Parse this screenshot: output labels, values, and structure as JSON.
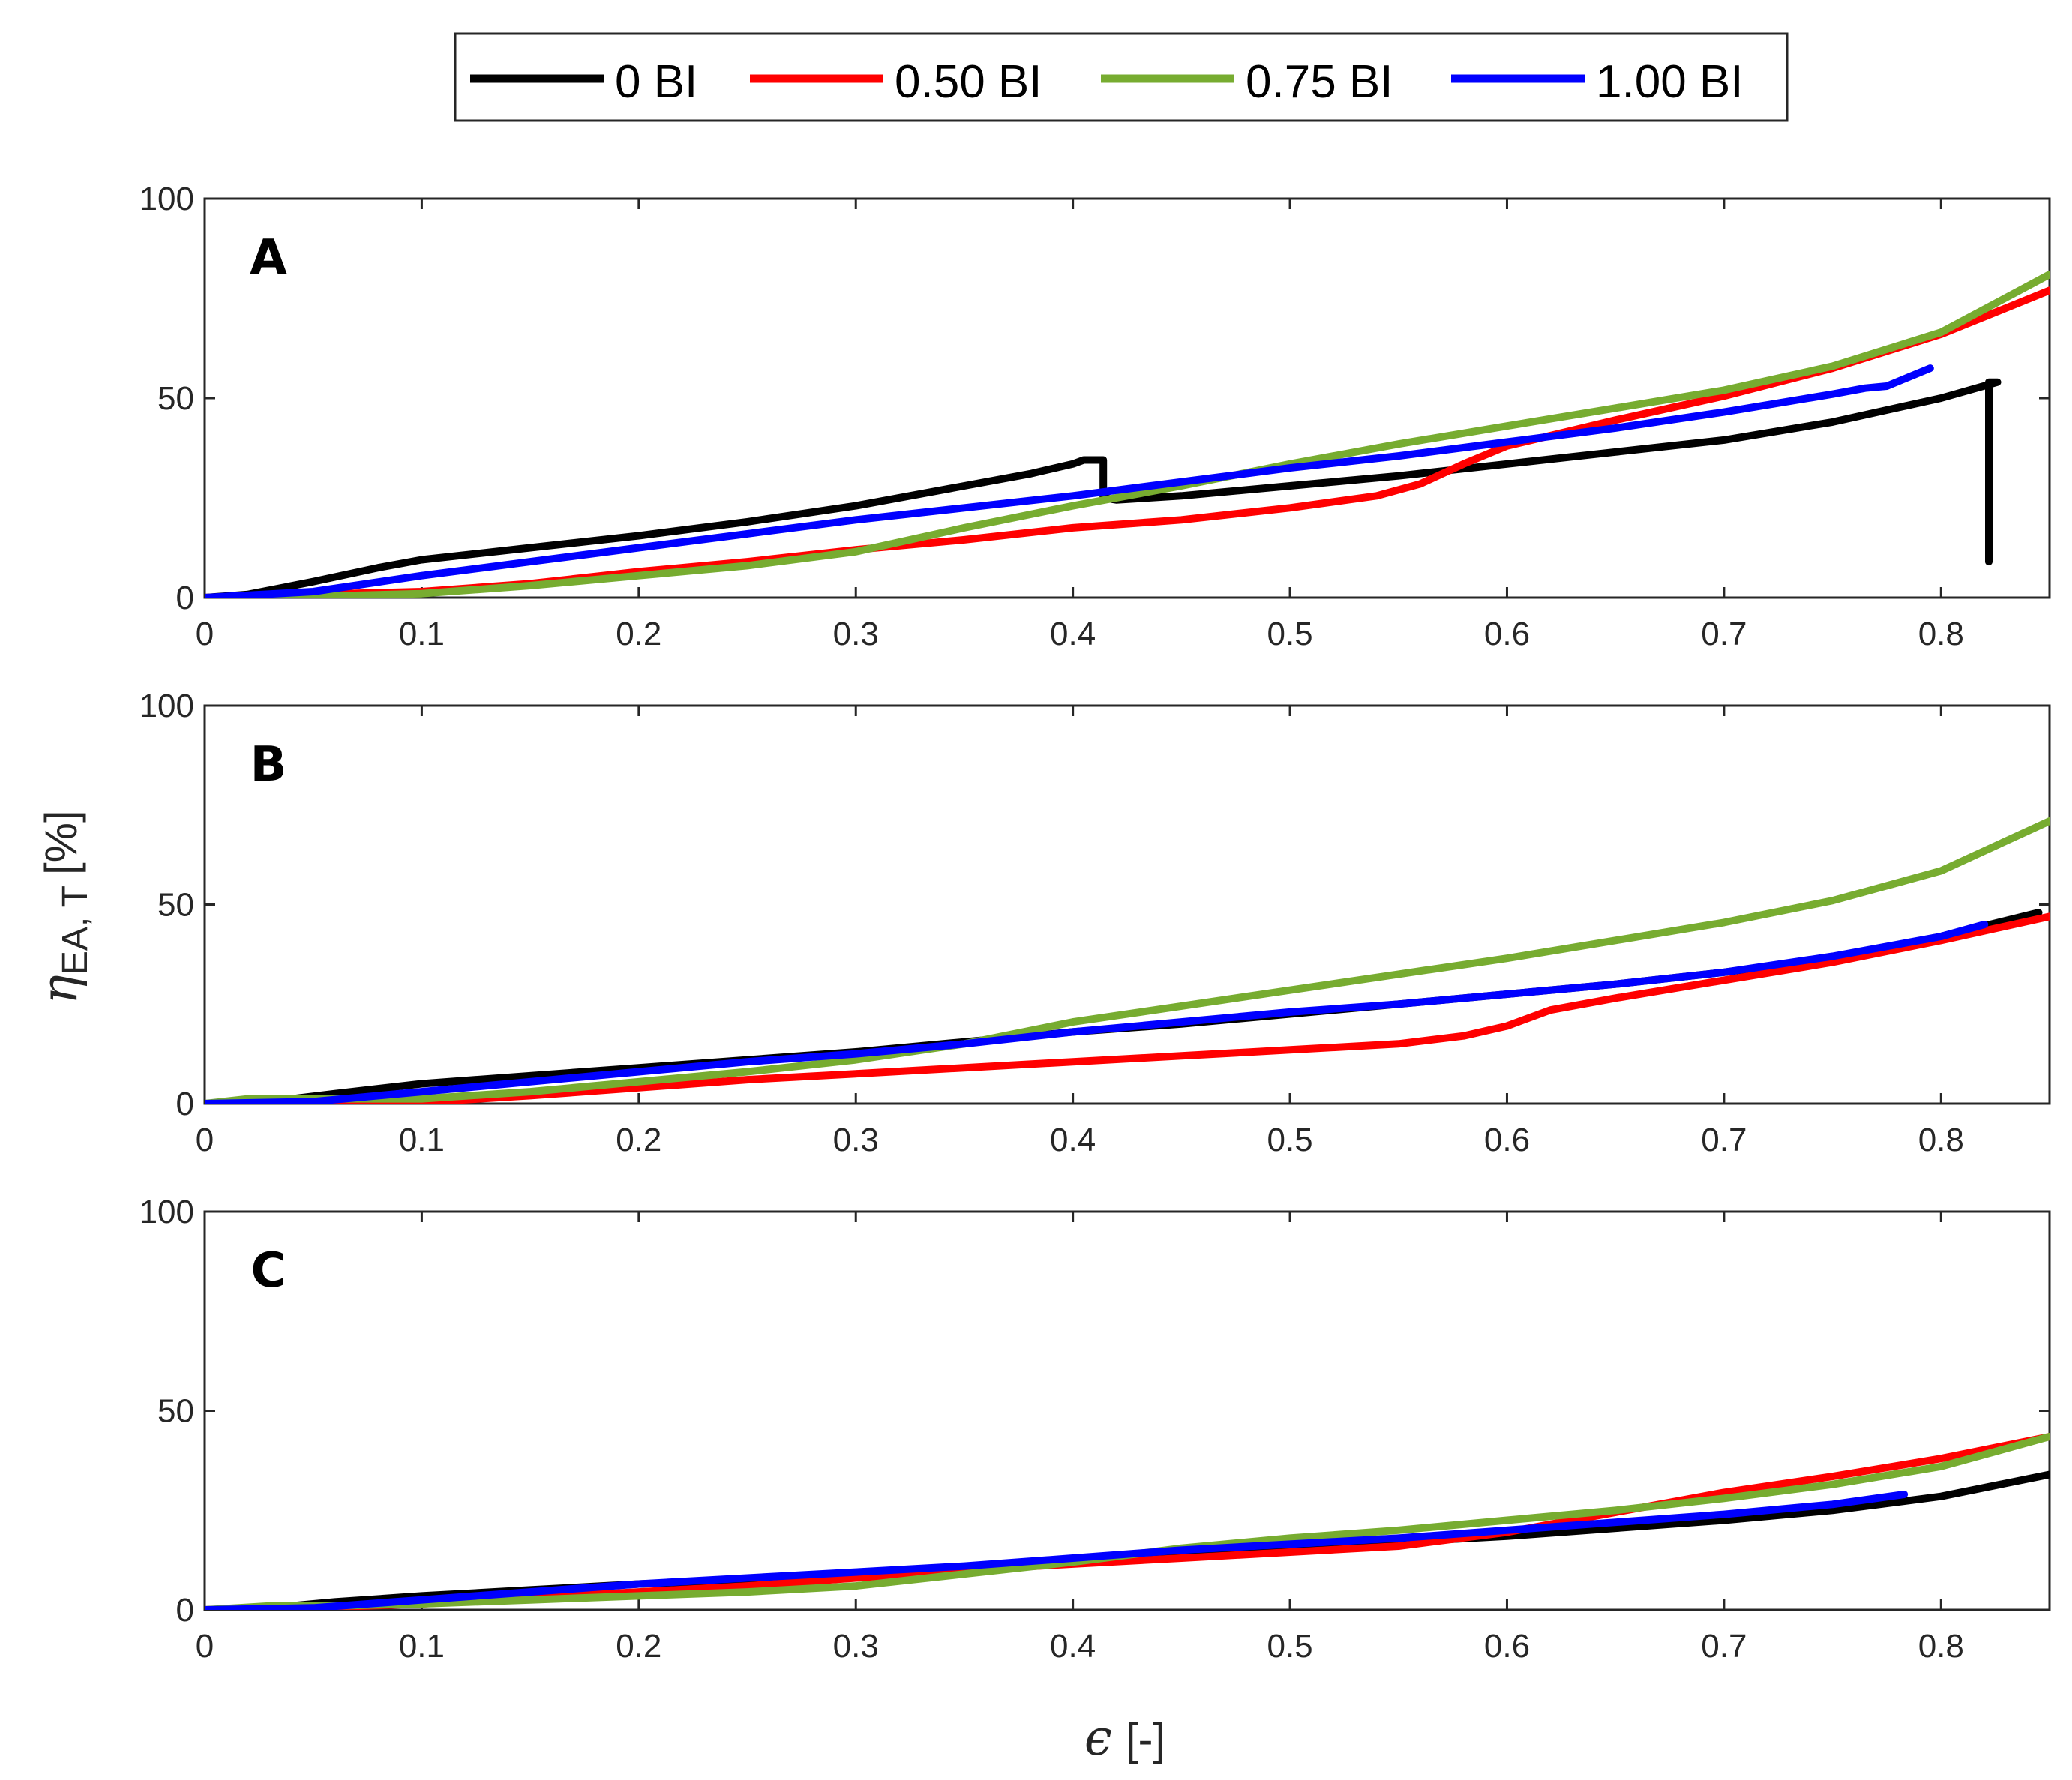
{
  "colors": {
    "black": "#000000",
    "red": "#ff0000",
    "green": "#77ac30",
    "blue": "#0000ff",
    "axis": "#262626"
  },
  "legend": {
    "entries": [
      {
        "label": "0 BI",
        "color_key": "black"
      },
      {
        "label": "0.50 BI",
        "color_key": "red"
      },
      {
        "label": "0.75 BI",
        "color_key": "green"
      },
      {
        "label": "1.00 BI",
        "color_key": "blue"
      }
    ]
  },
  "axes": {
    "xlabel_symbol": "ϵ",
    "xlabel_unit": "[-]",
    "ylabel_symbol": "η",
    "ylabel_subscript": "EA, T",
    "ylabel_unit": "[%]"
  },
  "chart_data": [
    {
      "type": "line",
      "panel": "A",
      "xlim": [
        0,
        0.85
      ],
      "ylim": [
        0,
        100
      ],
      "xticks": [
        "0",
        "0.1",
        "0.2",
        "0.3",
        "0.4",
        "0.5",
        "0.6",
        "0.7",
        "0.8"
      ],
      "yticks": [
        "0",
        "50",
        "100"
      ],
      "series": [
        {
          "name": "0 BI",
          "color_key": "black",
          "points": [
            [
              0,
              0
            ],
            [
              0.02,
              0.8
            ],
            [
              0.05,
              4
            ],
            [
              0.08,
              7.5
            ],
            [
              0.1,
              9.5
            ],
            [
              0.15,
              12.5
            ],
            [
              0.2,
              15.5
            ],
            [
              0.25,
              19
            ],
            [
              0.3,
              23
            ],
            [
              0.35,
              28
            ],
            [
              0.38,
              31
            ],
            [
              0.4,
              33.5
            ],
            [
              0.405,
              34.5
            ],
            [
              0.414,
              34.5
            ],
            [
              0.414,
              25
            ],
            [
              0.42,
              24.5
            ],
            [
              0.45,
              25.5
            ],
            [
              0.5,
              28
            ],
            [
              0.55,
              30.5
            ],
            [
              0.6,
              33.5
            ],
            [
              0.65,
              36.5
            ],
            [
              0.7,
              39.5
            ],
            [
              0.75,
              44
            ],
            [
              0.8,
              50
            ],
            [
              0.826,
              54
            ],
            [
              0.822,
              54
            ],
            [
              0.822,
              9
            ]
          ]
        },
        {
          "name": "0.50 BI",
          "color_key": "red",
          "points": [
            [
              0,
              0
            ],
            [
              0.05,
              0.8
            ],
            [
              0.1,
              1.5
            ],
            [
              0.15,
              3.5
            ],
            [
              0.2,
              6.5
            ],
            [
              0.25,
              9
            ],
            [
              0.3,
              12
            ],
            [
              0.35,
              14.5
            ],
            [
              0.4,
              17.5
            ],
            [
              0.45,
              19.5
            ],
            [
              0.5,
              22.5
            ],
            [
              0.54,
              25.5
            ],
            [
              0.56,
              28.5
            ],
            [
              0.58,
              33.5
            ],
            [
              0.6,
              38
            ],
            [
              0.65,
              44.5
            ],
            [
              0.7,
              50.5
            ],
            [
              0.75,
              57.5
            ],
            [
              0.8,
              66
            ],
            [
              0.85,
              77
            ]
          ]
        },
        {
          "name": "0.75 BI",
          "color_key": "green",
          "points": [
            [
              0,
              0
            ],
            [
              0.05,
              0.3
            ],
            [
              0.1,
              1
            ],
            [
              0.15,
              3
            ],
            [
              0.2,
              5.5
            ],
            [
              0.25,
              8
            ],
            [
              0.3,
              11.5
            ],
            [
              0.35,
              17.5
            ],
            [
              0.4,
              23
            ],
            [
              0.45,
              28
            ],
            [
              0.5,
              33.5
            ],
            [
              0.55,
              38.5
            ],
            [
              0.6,
              43
            ],
            [
              0.65,
              47.5
            ],
            [
              0.7,
              52
            ],
            [
              0.75,
              58
            ],
            [
              0.8,
              66.5
            ],
            [
              0.85,
              81
            ]
          ]
        },
        {
          "name": "1.00 BI",
          "color_key": "blue",
          "points": [
            [
              0,
              0
            ],
            [
              0.05,
              1.5
            ],
            [
              0.1,
              5.5
            ],
            [
              0.15,
              9
            ],
            [
              0.2,
              12.5
            ],
            [
              0.25,
              16
            ],
            [
              0.3,
              19.5
            ],
            [
              0.35,
              22.5
            ],
            [
              0.4,
              25.5
            ],
            [
              0.45,
              29
            ],
            [
              0.5,
              32.5
            ],
            [
              0.55,
              35.5
            ],
            [
              0.6,
              39
            ],
            [
              0.65,
              42.5
            ],
            [
              0.7,
              46.5
            ],
            [
              0.75,
              51
            ],
            [
              0.765,
              52.5
            ],
            [
              0.775,
              53
            ],
            [
              0.795,
              57.5
            ]
          ]
        }
      ]
    },
    {
      "type": "line",
      "panel": "B",
      "xlim": [
        0,
        0.85
      ],
      "ylim": [
        0,
        100
      ],
      "xticks": [
        "0",
        "0.1",
        "0.2",
        "0.3",
        "0.4",
        "0.5",
        "0.6",
        "0.7",
        "0.8"
      ],
      "yticks": [
        "0",
        "50",
        "100"
      ],
      "series": [
        {
          "name": "0 BI",
          "color_key": "black",
          "points": [
            [
              0,
              0
            ],
            [
              0.03,
              0.5
            ],
            [
              0.06,
              2.5
            ],
            [
              0.1,
              5
            ],
            [
              0.15,
              7
            ],
            [
              0.2,
              9
            ],
            [
              0.25,
              11
            ],
            [
              0.3,
              13
            ],
            [
              0.35,
              15.5
            ],
            [
              0.4,
              18
            ],
            [
              0.45,
              20
            ],
            [
              0.5,
              22.5
            ],
            [
              0.55,
              25
            ],
            [
              0.6,
              27.5
            ],
            [
              0.65,
              30
            ],
            [
              0.7,
              33
            ],
            [
              0.75,
              36.5
            ],
            [
              0.8,
              42
            ],
            [
              0.845,
              48
            ]
          ]
        },
        {
          "name": "0.50 BI",
          "color_key": "red",
          "points": [
            [
              0,
              0
            ],
            [
              0.05,
              0
            ],
            [
              0.1,
              0.3
            ],
            [
              0.15,
              2
            ],
            [
              0.2,
              4
            ],
            [
              0.25,
              6
            ],
            [
              0.3,
              7.5
            ],
            [
              0.35,
              9
            ],
            [
              0.4,
              10.5
            ],
            [
              0.45,
              12
            ],
            [
              0.5,
              13.5
            ],
            [
              0.55,
              15
            ],
            [
              0.58,
              17
            ],
            [
              0.6,
              19.5
            ],
            [
              0.62,
              23.5
            ],
            [
              0.65,
              26.5
            ],
            [
              0.7,
              31
            ],
            [
              0.75,
              35.5
            ],
            [
              0.8,
              41
            ],
            [
              0.85,
              47
            ]
          ]
        },
        {
          "name": "0.75 BI",
          "color_key": "green",
          "points": [
            [
              0,
              0
            ],
            [
              0.02,
              1.2
            ],
            [
              0.05,
              1.2
            ],
            [
              0.1,
              1.2
            ],
            [
              0.15,
              3
            ],
            [
              0.2,
              5.5
            ],
            [
              0.25,
              8
            ],
            [
              0.3,
              11
            ],
            [
              0.35,
              15
            ],
            [
              0.4,
              20.5
            ],
            [
              0.45,
              24.5
            ],
            [
              0.5,
              28.5
            ],
            [
              0.55,
              32.5
            ],
            [
              0.6,
              36.5
            ],
            [
              0.65,
              41
            ],
            [
              0.7,
              45.5
            ],
            [
              0.75,
              51
            ],
            [
              0.8,
              58.5
            ],
            [
              0.85,
              71
            ]
          ]
        },
        {
          "name": "1.00 BI",
          "color_key": "blue",
          "points": [
            [
              0,
              0
            ],
            [
              0.05,
              0.5
            ],
            [
              0.1,
              3
            ],
            [
              0.15,
              5.5
            ],
            [
              0.2,
              8
            ],
            [
              0.25,
              10.5
            ],
            [
              0.3,
              12.5
            ],
            [
              0.35,
              15
            ],
            [
              0.4,
              18
            ],
            [
              0.45,
              20.5
            ],
            [
              0.5,
              23
            ],
            [
              0.55,
              25
            ],
            [
              0.6,
              27.5
            ],
            [
              0.65,
              30
            ],
            [
              0.7,
              33
            ],
            [
              0.75,
              37
            ],
            [
              0.8,
              42
            ],
            [
              0.82,
              45
            ]
          ]
        }
      ]
    },
    {
      "type": "line",
      "panel": "C",
      "xlim": [
        0,
        0.85
      ],
      "ylim": [
        0,
        100
      ],
      "xticks": [
        "0",
        "0.1",
        "0.2",
        "0.3",
        "0.4",
        "0.5",
        "0.6",
        "0.7",
        "0.8"
      ],
      "yticks": [
        "0",
        "50",
        "100"
      ],
      "series": [
        {
          "name": "0 BI",
          "color_key": "black",
          "points": [
            [
              0,
              0
            ],
            [
              0.03,
              0.5
            ],
            [
              0.06,
              2
            ],
            [
              0.1,
              3.5
            ],
            [
              0.15,
              5
            ],
            [
              0.2,
              6.5
            ],
            [
              0.25,
              7.5
            ],
            [
              0.3,
              9
            ],
            [
              0.35,
              10.5
            ],
            [
              0.4,
              12.5
            ],
            [
              0.45,
              14
            ],
            [
              0.5,
              15.5
            ],
            [
              0.55,
              17
            ],
            [
              0.6,
              18.5
            ],
            [
              0.65,
              20.5
            ],
            [
              0.7,
              22.5
            ],
            [
              0.75,
              25
            ],
            [
              0.8,
              28.5
            ],
            [
              0.85,
              34
            ]
          ]
        },
        {
          "name": "0.50 BI",
          "color_key": "red",
          "points": [
            [
              0,
              0
            ],
            [
              0.05,
              0.5
            ],
            [
              0.1,
              1.5
            ],
            [
              0.15,
              3
            ],
            [
              0.2,
              4.5
            ],
            [
              0.25,
              6
            ],
            [
              0.3,
              8
            ],
            [
              0.35,
              10
            ],
            [
              0.4,
              11.5
            ],
            [
              0.45,
              13
            ],
            [
              0.5,
              14.5
            ],
            [
              0.55,
              16
            ],
            [
              0.6,
              19.5
            ],
            [
              0.65,
              24.5
            ],
            [
              0.7,
              29.5
            ],
            [
              0.75,
              33.5
            ],
            [
              0.8,
              38
            ],
            [
              0.85,
              43.5
            ]
          ]
        },
        {
          "name": "0.75 BI",
          "color_key": "green",
          "points": [
            [
              0,
              0
            ],
            [
              0.03,
              1
            ],
            [
              0.06,
              1
            ],
            [
              0.1,
              1.5
            ],
            [
              0.15,
              2.5
            ],
            [
              0.2,
              3.5
            ],
            [
              0.25,
              4.5
            ],
            [
              0.3,
              6
            ],
            [
              0.35,
              9
            ],
            [
              0.4,
              12
            ],
            [
              0.45,
              15.5
            ],
            [
              0.5,
              18
            ],
            [
              0.55,
              20
            ],
            [
              0.6,
              22.5
            ],
            [
              0.65,
              25
            ],
            [
              0.7,
              28
            ],
            [
              0.75,
              31.5
            ],
            [
              0.8,
              36
            ],
            [
              0.85,
              43.5
            ]
          ]
        },
        {
          "name": "1.00 BI",
          "color_key": "blue",
          "points": [
            [
              0,
              0
            ],
            [
              0.05,
              0.5
            ],
            [
              0.1,
              2.5
            ],
            [
              0.15,
              4.5
            ],
            [
              0.2,
              6.5
            ],
            [
              0.25,
              8
            ],
            [
              0.3,
              9.5
            ],
            [
              0.35,
              11
            ],
            [
              0.4,
              13
            ],
            [
              0.45,
              15
            ],
            [
              0.5,
              16.5
            ],
            [
              0.55,
              18
            ],
            [
              0.6,
              20
            ],
            [
              0.65,
              22
            ],
            [
              0.7,
              24
            ],
            [
              0.75,
              26.5
            ],
            [
              0.783,
              29
            ]
          ]
        }
      ]
    }
  ]
}
